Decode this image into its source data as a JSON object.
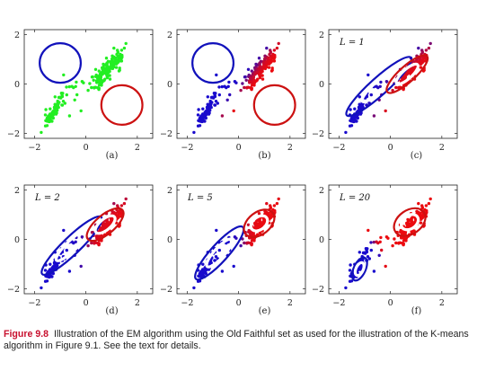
{
  "chart_data": [
    {
      "type": "scatter",
      "panel_label": "(a)",
      "iteration_label": "",
      "xlim": [
        -2.4,
        2.6
      ],
      "ylim": [
        -2.2,
        2.2
      ],
      "x_ticks": [
        "−2",
        "0",
        "2"
      ],
      "y_ticks": [
        "2",
        "0",
        "−2"
      ],
      "point_color": "#22ee22",
      "component_colors": [
        "#1111bb",
        "#cc1111"
      ],
      "gaussians": [
        {
          "cx": -1.0,
          "cy": 0.85,
          "sd_x": 0.5,
          "sd_y": 0.5,
          "angle": 0,
          "color": "#1111bb",
          "levels": [
            1
          ]
        },
        {
          "cx": 1.4,
          "cy": -0.85,
          "sd_x": 0.5,
          "sd_y": 0.5,
          "angle": 0,
          "color": "#cc1111",
          "levels": [
            1
          ]
        }
      ]
    },
    {
      "type": "scatter",
      "panel_label": "(b)",
      "iteration_label": "",
      "xlim": [
        -2.4,
        2.6
      ],
      "ylim": [
        -2.2,
        2.2
      ],
      "x_ticks": [
        "−2",
        "0",
        "2"
      ],
      "y_ticks": [
        "2",
        "0",
        "−2"
      ],
      "point_color": "mixed",
      "component_colors": [
        "#1111bb",
        "#cc1111"
      ],
      "gaussians": [
        {
          "cx": -1.0,
          "cy": 0.85,
          "sd_x": 0.5,
          "sd_y": 0.5,
          "angle": 0,
          "color": "#1111bb",
          "levels": [
            1
          ]
        },
        {
          "cx": 1.4,
          "cy": -0.85,
          "sd_x": 0.5,
          "sd_y": 0.5,
          "angle": 0,
          "color": "#cc1111",
          "levels": [
            1
          ]
        }
      ]
    },
    {
      "type": "scatter",
      "panel_label": "(c)",
      "iteration_label": "L = 1",
      "xlim": [
        -2.4,
        2.6
      ],
      "ylim": [
        -2.2,
        2.2
      ],
      "x_ticks": [
        "−2",
        "0",
        "2"
      ],
      "y_ticks": [
        "2",
        "0",
        "−2"
      ],
      "point_color": "mixed",
      "component_colors": [
        "#1111bb",
        "#cc1111"
      ],
      "gaussians": [
        {
          "cx": -0.45,
          "cy": -0.1,
          "sd_x": 1.05,
          "sd_y": 0.22,
          "angle": 42,
          "color": "#1111bb",
          "levels": [
            1,
            0.5
          ]
        },
        {
          "cx": 0.65,
          "cy": 0.4,
          "sd_x": 0.65,
          "sd_y": 0.2,
          "angle": 42,
          "color": "#cc1111",
          "levels": [
            1,
            0.5
          ]
        }
      ]
    },
    {
      "type": "scatter",
      "panel_label": "(d)",
      "iteration_label": "L = 2",
      "xlim": [
        -2.4,
        2.6
      ],
      "ylim": [
        -2.2,
        2.2
      ],
      "x_ticks": [
        "−2",
        "0",
        "2"
      ],
      "y_ticks": [
        "2",
        "0",
        "−2"
      ],
      "point_color": "mixed",
      "component_colors": [
        "#1111bb",
        "#cc1111"
      ],
      "gaussians": [
        {
          "cx": -0.55,
          "cy": -0.25,
          "sd_x": 1.0,
          "sd_y": 0.22,
          "angle": 44,
          "color": "#1111bb",
          "levels": [
            1,
            0.5
          ]
        },
        {
          "cx": 0.75,
          "cy": 0.6,
          "sd_x": 0.55,
          "sd_y": 0.24,
          "angle": 40,
          "color": "#cc1111",
          "levels": [
            1,
            0.5
          ]
        }
      ]
    },
    {
      "type": "scatter",
      "panel_label": "(e)",
      "iteration_label": "L = 5",
      "xlim": [
        -2.4,
        2.6
      ],
      "ylim": [
        -2.2,
        2.2
      ],
      "x_ticks": [
        "−2",
        "0",
        "2"
      ],
      "y_ticks": [
        "2",
        "0",
        "−2"
      ],
      "point_color": "mixed",
      "component_colors": [
        "#1111bb",
        "#cc1111"
      ],
      "gaussians": [
        {
          "cx": -0.75,
          "cy": -0.55,
          "sd_x": 0.85,
          "sd_y": 0.22,
          "angle": 48,
          "color": "#1111bb",
          "levels": [
            1,
            0.5
          ]
        },
        {
          "cx": 0.8,
          "cy": 0.65,
          "sd_x": 0.42,
          "sd_y": 0.28,
          "angle": 38,
          "color": "#cc1111",
          "levels": [
            1,
            0.5
          ]
        }
      ]
    },
    {
      "type": "scatter",
      "panel_label": "(f)",
      "iteration_label": "L = 20",
      "xlim": [
        -2.4,
        2.6
      ],
      "ylim": [
        -2.2,
        2.2
      ],
      "x_ticks": [
        "−2",
        "0",
        "2"
      ],
      "y_ticks": [
        "2",
        "0",
        "−2"
      ],
      "point_color": "mixed",
      "component_colors": [
        "#1111bb",
        "#cc1111"
      ],
      "gaussians": [
        {
          "cx": -1.2,
          "cy": -1.2,
          "sd_x": 0.3,
          "sd_y": 0.15,
          "angle": 65,
          "color": "#1111bb",
          "levels": [
            1,
            0.5
          ]
        },
        {
          "cx": 0.75,
          "cy": 0.7,
          "sd_x": 0.42,
          "sd_y": 0.3,
          "angle": 35,
          "color": "#cc1111",
          "levels": [
            1,
            0.5
          ]
        }
      ]
    }
  ],
  "caption": {
    "figure_number": "Figure 9.8",
    "text": "Illustration of the EM algorithm using the Old Faithful set as used for the illustration of the K-means algorithm in Figure 9.1. See the text for details."
  }
}
